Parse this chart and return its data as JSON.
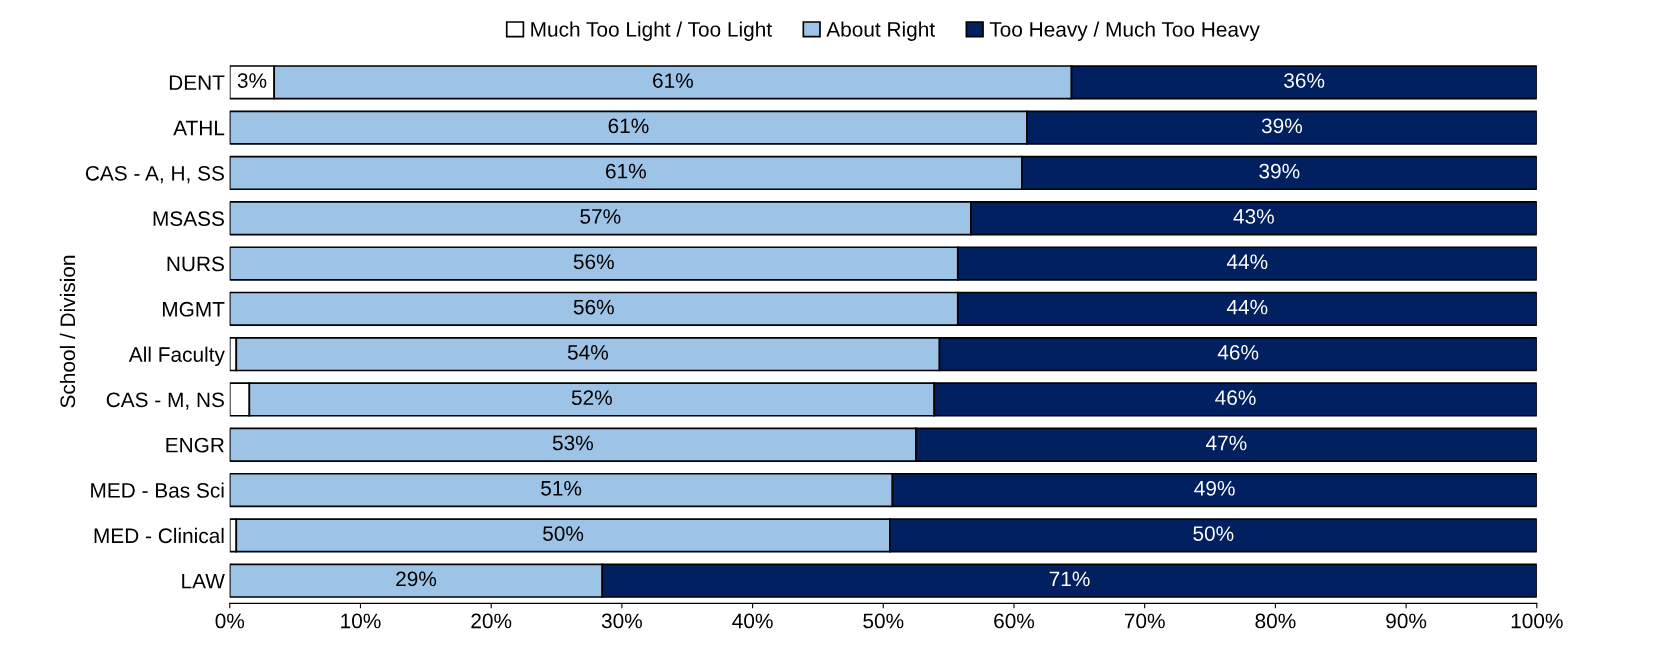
{
  "chart_data": {
    "type": "bar",
    "orientation": "horizontal",
    "stacked": true,
    "ylabel": "School / Division",
    "categories": [
      "DENT",
      "ATHL",
      "CAS - A, H, SS",
      "MSASS",
      "NURS",
      "MGMT",
      "All Faculty",
      "CAS - M, NS",
      "ENGR",
      "MED - Bas Sci",
      "MED - Clinical",
      "LAW"
    ],
    "series": [
      {
        "name": "Much Too Light / Too Light",
        "color": "#ffffff",
        "values": [
          3.4,
          0,
          0,
          0,
          0,
          0,
          0.5,
          1.5,
          0,
          0,
          0.5,
          0
        ],
        "value_labels": [
          "3%",
          null,
          null,
          null,
          null,
          null,
          null,
          null,
          null,
          null,
          null,
          null
        ]
      },
      {
        "name": "About Right",
        "color": "#9dc3e6",
        "values": [
          61.0,
          61.0,
          60.6,
          56.7,
          55.7,
          55.7,
          53.8,
          52.4,
          52.5,
          50.7,
          50.0,
          28.5
        ],
        "value_labels": [
          "61%",
          "61%",
          "61%",
          "57%",
          "56%",
          "56%",
          "54%",
          "52%",
          "53%",
          "51%",
          "50%",
          "29%"
        ]
      },
      {
        "name": "Too Heavy / Much Too Heavy",
        "color": "#002060",
        "values": [
          35.6,
          39.0,
          39.4,
          43.3,
          44.3,
          44.3,
          45.7,
          46.1,
          47.5,
          49.3,
          49.5,
          71.5
        ],
        "value_labels": [
          "36%",
          "39%",
          "39%",
          "43%",
          "44%",
          "44%",
          "46%",
          "46%",
          "47%",
          "49%",
          "50%",
          "71%"
        ]
      }
    ],
    "xlim": [
      0,
      100
    ],
    "xticks": [
      {
        "value": 0,
        "label": "0%"
      },
      {
        "value": 10,
        "label": "10%"
      },
      {
        "value": 20,
        "label": "20%"
      },
      {
        "value": 30,
        "label": "30%"
      },
      {
        "value": 40,
        "label": "40%"
      },
      {
        "value": 50,
        "label": "50%"
      },
      {
        "value": 60,
        "label": "60%"
      },
      {
        "value": 70,
        "label": "70%"
      },
      {
        "value": 80,
        "label": "80%"
      },
      {
        "value": 90,
        "label": "90%"
      },
      {
        "value": 100,
        "label": "100%"
      }
    ],
    "grid": false,
    "legend": "top"
  }
}
